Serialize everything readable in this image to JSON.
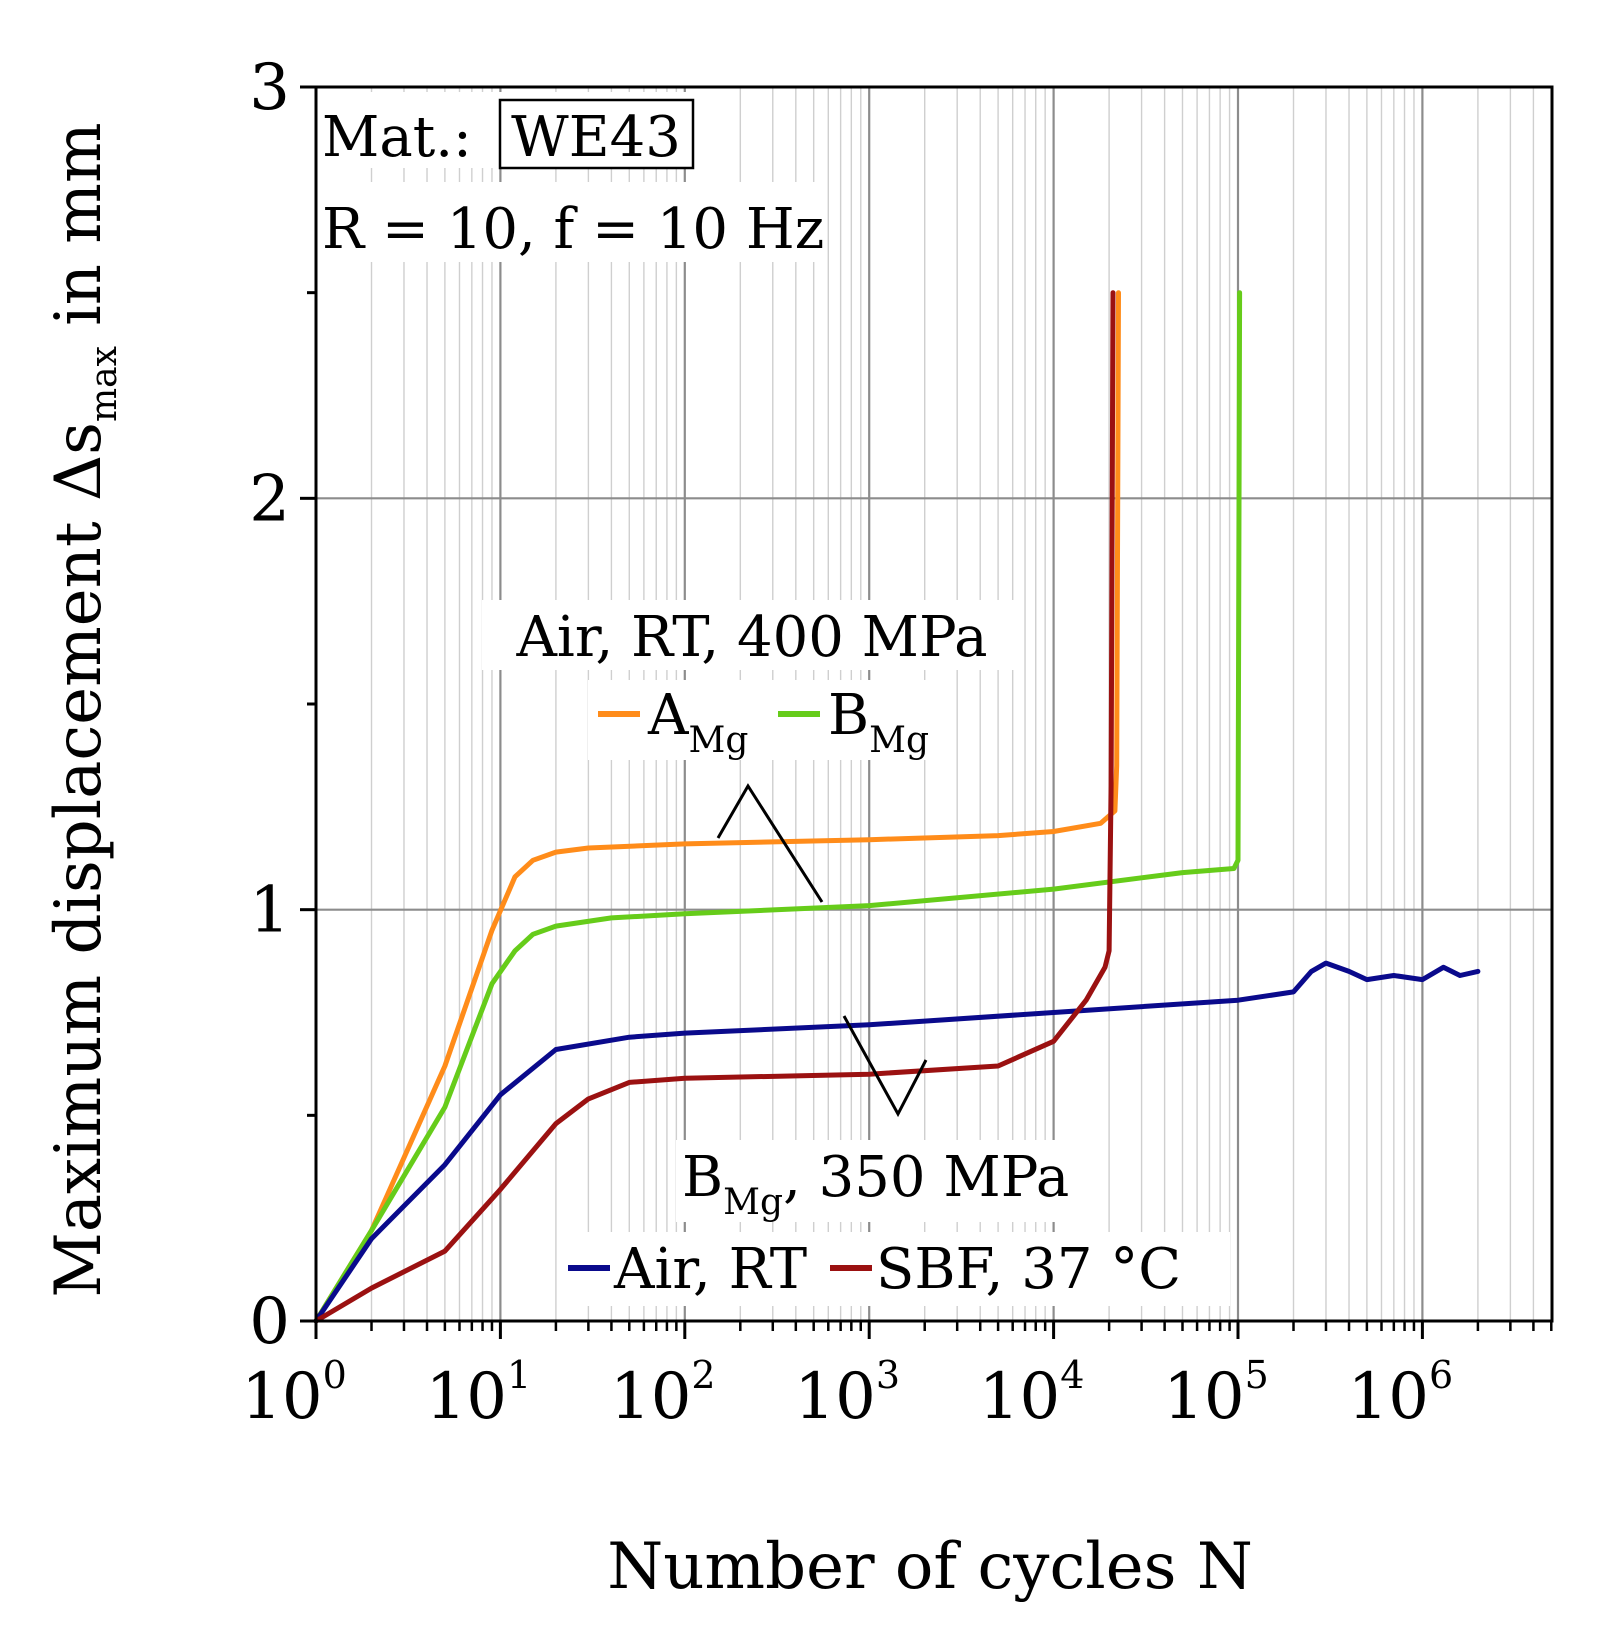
{
  "chart_data": {
    "type": "line",
    "x_scale": "log",
    "xlabel": "Number of cycles N",
    "ylabel": "Maximum displacement Δs",
    "ylabel_sub": "max",
    "ylabel_unit": " in mm",
    "xlim": [
      1,
      5000000
    ],
    "ylim": [
      0,
      3
    ],
    "grid": true,
    "x_ticks": [
      {
        "base": "10",
        "exp": "0"
      },
      {
        "base": "10",
        "exp": "1"
      },
      {
        "base": "10",
        "exp": "2"
      },
      {
        "base": "10",
        "exp": "3"
      },
      {
        "base": "10",
        "exp": "4"
      },
      {
        "base": "10",
        "exp": "5"
      },
      {
        "base": "10",
        "exp": "6"
      }
    ],
    "y_ticks": [
      "0",
      "1",
      "2",
      "3"
    ],
    "series": [
      {
        "name": "A_Mg Air, RT, 400 MPa",
        "color": "#ff8c1a",
        "points": [
          [
            1,
            0
          ],
          [
            2,
            0.22
          ],
          [
            5,
            0.62
          ],
          [
            9,
            0.95
          ],
          [
            12,
            1.08
          ],
          [
            15,
            1.12
          ],
          [
            20,
            1.14
          ],
          [
            30,
            1.15
          ],
          [
            100,
            1.16
          ],
          [
            1000,
            1.17
          ],
          [
            5000,
            1.18
          ],
          [
            10000,
            1.19
          ],
          [
            18000,
            1.21
          ],
          [
            21500,
            1.24
          ],
          [
            22000,
            1.35
          ],
          [
            22500,
            2.5
          ]
        ]
      },
      {
        "name": "B_Mg Air, RT, 400 MPa",
        "color": "#66cc1a",
        "points": [
          [
            1,
            0
          ],
          [
            2,
            0.22
          ],
          [
            5,
            0.52
          ],
          [
            9,
            0.82
          ],
          [
            12,
            0.9
          ],
          [
            15,
            0.94
          ],
          [
            20,
            0.96
          ],
          [
            40,
            0.98
          ],
          [
            100,
            0.99
          ],
          [
            1000,
            1.01
          ],
          [
            10000,
            1.05
          ],
          [
            50000,
            1.09
          ],
          [
            95000,
            1.1
          ],
          [
            100000,
            1.12
          ],
          [
            102000,
            2.5
          ]
        ]
      },
      {
        "name": "B_Mg 350 MPa Air, RT",
        "color": "#0a0a8c",
        "points": [
          [
            1,
            0
          ],
          [
            2,
            0.2
          ],
          [
            5,
            0.38
          ],
          [
            10,
            0.55
          ],
          [
            20,
            0.66
          ],
          [
            50,
            0.69
          ],
          [
            100,
            0.7
          ],
          [
            1000,
            0.72
          ],
          [
            10000,
            0.75
          ],
          [
            100000,
            0.78
          ],
          [
            200000,
            0.8
          ],
          [
            250000,
            0.85
          ],
          [
            300000,
            0.87
          ],
          [
            400000,
            0.85
          ],
          [
            500000,
            0.83
          ],
          [
            700000,
            0.84
          ],
          [
            1000000,
            0.83
          ],
          [
            1300000,
            0.86
          ],
          [
            1600000,
            0.84
          ],
          [
            2000000,
            0.85
          ]
        ]
      },
      {
        "name": "B_Mg 350 MPa SBF, 37 °C",
        "color": "#9b1111",
        "points": [
          [
            1,
            0
          ],
          [
            2,
            0.08
          ],
          [
            5,
            0.17
          ],
          [
            10,
            0.32
          ],
          [
            20,
            0.48
          ],
          [
            30,
            0.54
          ],
          [
            50,
            0.58
          ],
          [
            100,
            0.59
          ],
          [
            1000,
            0.6
          ],
          [
            5000,
            0.62
          ],
          [
            10000,
            0.68
          ],
          [
            15000,
            0.78
          ],
          [
            19000,
            0.86
          ],
          [
            20000,
            0.9
          ],
          [
            20500,
            1.3
          ],
          [
            21000,
            2.5
          ]
        ]
      }
    ],
    "annotations": {
      "material_label": "Mat.:",
      "material": "WE43",
      "condition": "R = 10, f = 10 Hz",
      "group_400": "Air, RT, 400 MPa",
      "legend_a": "A",
      "legend_b": "B",
      "legend_sub": "Mg",
      "group_350_b": "B",
      "group_350_sub": "Mg",
      "group_350_rest": ", 350 MPa",
      "legend_air": "Air, RT",
      "legend_sbf": "SBF, 37 °C"
    }
  }
}
